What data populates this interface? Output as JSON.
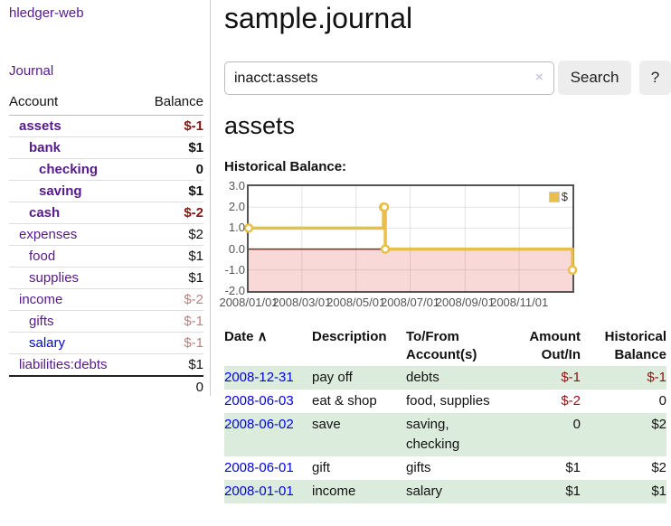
{
  "app": {
    "title": "hledger-web",
    "nav_journal": "Journal"
  },
  "sidebar": {
    "columns": {
      "account": "Account",
      "balance": "Balance"
    },
    "accounts": [
      {
        "name": "assets",
        "balance": "$-1",
        "level": 1,
        "bold": true,
        "balance_style": "neg"
      },
      {
        "name": "bank",
        "balance": "$1",
        "level": 2,
        "bold": true,
        "balance_style": ""
      },
      {
        "name": "checking",
        "balance": "0",
        "level": 3,
        "bold": true,
        "balance_style": ""
      },
      {
        "name": "saving",
        "balance": "$1",
        "level": 3,
        "bold": true,
        "balance_style": ""
      },
      {
        "name": "cash",
        "balance": "$-2",
        "level": 2,
        "bold": true,
        "balance_style": "neg"
      },
      {
        "name": "expenses",
        "balance": "$2",
        "level": 1,
        "bold": false,
        "balance_style": ""
      },
      {
        "name": "food",
        "balance": "$1",
        "level": 2,
        "bold": false,
        "balance_style": ""
      },
      {
        "name": "supplies",
        "balance": "$1",
        "level": 2,
        "bold": false,
        "balance_style": ""
      },
      {
        "name": "income",
        "balance": "$-2",
        "level": 1,
        "bold": false,
        "balance_style": "negfade"
      },
      {
        "name": "gifts",
        "balance": "$-1",
        "level": 2,
        "bold": false,
        "balance_style": "negfade"
      },
      {
        "name": "salary",
        "balance": "$-1",
        "level": 2,
        "bold": false,
        "balance_style": "negfade",
        "link_style": "blue"
      },
      {
        "name": "liabilities:debts",
        "balance": "$1",
        "level": 1,
        "bold": false,
        "balance_style": ""
      }
    ],
    "total": "0"
  },
  "header": {
    "title": "sample.journal"
  },
  "search": {
    "value": "inacct:assets",
    "clear_icon": "×",
    "button": "Search",
    "help_button": "?"
  },
  "account_page": {
    "heading": "assets",
    "chart_label": "Historical Balance:"
  },
  "chart_data": {
    "type": "line",
    "step": true,
    "title": "Historical Balance",
    "x_range": [
      "2008-01-01",
      "2008-12-31"
    ],
    "ylim": [
      -2,
      3
    ],
    "y_ticks": [
      "3.0",
      "2.0",
      "1.0",
      "0.0",
      "-1.0",
      "-2.0"
    ],
    "x_ticks": [
      "2008/01/01",
      "2008/03/01",
      "2008/05/01",
      "2008/07/01",
      "2008/09/01",
      "2008/11/01"
    ],
    "series": [
      {
        "name": "$",
        "color": "#e9bf4a",
        "points": [
          [
            "2008-01-01",
            1
          ],
          [
            "2008-06-01",
            2
          ],
          [
            "2008-06-02",
            2
          ],
          [
            "2008-06-03",
            0
          ],
          [
            "2008-12-31",
            -1
          ]
        ]
      }
    ],
    "legend_position": "top-right",
    "grid": true,
    "zero_line_color": "#8b2424",
    "negative_region_fill": "#f9d8d8",
    "grid_color": "rgba(84,84,84,0.16)"
  },
  "register": {
    "columns": [
      {
        "label": "Date",
        "sort": "∧",
        "align": "left"
      },
      {
        "label": "Description",
        "align": "left"
      },
      {
        "label": "To/From Account(s)",
        "align": "left"
      },
      {
        "label": "Amount Out/In",
        "align": "right"
      },
      {
        "label": "Historical Balance",
        "align": "right"
      }
    ],
    "rows": [
      {
        "date": "2008-12-31",
        "description": "pay off",
        "accounts": "debts",
        "amount": "$-1",
        "balance": "$-1"
      },
      {
        "date": "2008-06-03",
        "description": "eat & shop",
        "accounts": "food, supplies",
        "amount": "$-2",
        "balance": "0"
      },
      {
        "date": "2008-06-02",
        "description": "save",
        "accounts": "saving, checking",
        "amount": "0",
        "balance": "$2"
      },
      {
        "date": "2008-06-01",
        "description": "gift",
        "accounts": "gifts",
        "amount": "$1",
        "balance": "$2"
      },
      {
        "date": "2008-01-01",
        "description": "income",
        "accounts": "salary",
        "amount": "$1",
        "balance": "$1"
      }
    ]
  }
}
